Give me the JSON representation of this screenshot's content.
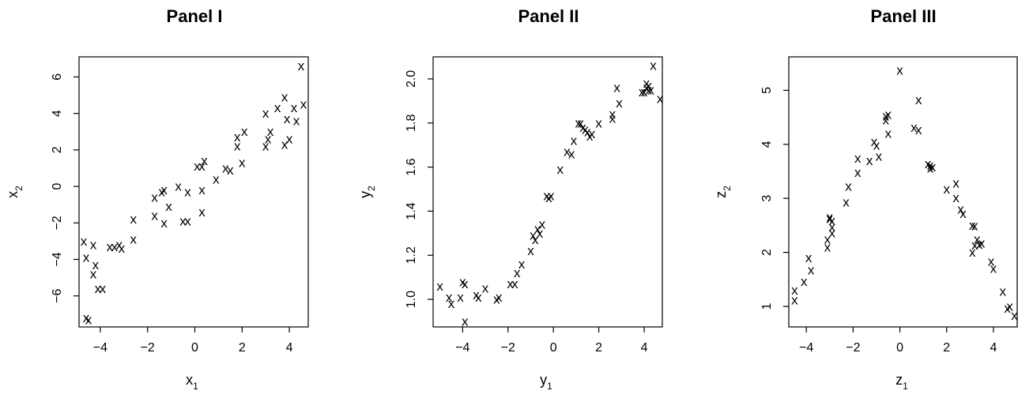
{
  "chart_data": [
    {
      "type": "scatter",
      "title": "Panel I",
      "xlabel": "x",
      "xlabel_sub": "1",
      "ylabel": "x",
      "ylabel_sub": "2",
      "marker": "x",
      "xlim": [
        -4.9,
        4.8
      ],
      "ylim": [
        -7.7,
        7.1
      ],
      "xticks": [
        -4,
        -2,
        0,
        2,
        4
      ],
      "yticks": [
        -6,
        -4,
        -2,
        0,
        2,
        4,
        6
      ],
      "xtick_labels": [
        "−4",
        "−2",
        "0",
        "2",
        "4"
      ],
      "ytick_labels": [
        "−6",
        "−4",
        "−2",
        "0",
        "2",
        "4",
        "6"
      ],
      "points": [
        [
          -4.7,
          -3.0
        ],
        [
          -4.6,
          -3.9
        ],
        [
          -4.6,
          -7.2
        ],
        [
          -4.5,
          -7.3
        ],
        [
          -4.3,
          -3.2
        ],
        [
          -4.3,
          -4.8
        ],
        [
          -4.2,
          -4.3
        ],
        [
          -4.1,
          -5.6
        ],
        [
          -3.9,
          -5.6
        ],
        [
          -3.6,
          -3.3
        ],
        [
          -3.4,
          -3.3
        ],
        [
          -3.2,
          -3.2
        ],
        [
          -3.1,
          -3.4
        ],
        [
          -2.6,
          -1.8
        ],
        [
          -2.6,
          -2.9
        ],
        [
          -1.7,
          -1.6
        ],
        [
          -1.7,
          -0.6
        ],
        [
          -1.4,
          -0.3
        ],
        [
          -1.3,
          -0.2
        ],
        [
          -1.3,
          -2.0
        ],
        [
          -1.1,
          -1.1
        ],
        [
          -0.7,
          0.0
        ],
        [
          -0.5,
          -1.9
        ],
        [
          -0.3,
          -0.3
        ],
        [
          -0.3,
          -1.9
        ],
        [
          0.1,
          1.1
        ],
        [
          0.3,
          -0.2
        ],
        [
          0.3,
          1.1
        ],
        [
          0.3,
          -1.4
        ],
        [
          0.4,
          1.4
        ],
        [
          0.9,
          0.4
        ],
        [
          1.3,
          1.0
        ],
        [
          1.5,
          0.9
        ],
        [
          1.8,
          2.2
        ],
        [
          1.8,
          2.7
        ],
        [
          2.0,
          1.3
        ],
        [
          2.1,
          3.0
        ],
        [
          3.0,
          2.2
        ],
        [
          3.0,
          4.0
        ],
        [
          3.1,
          2.6
        ],
        [
          3.2,
          3.0
        ],
        [
          3.5,
          4.3
        ],
        [
          3.8,
          4.9
        ],
        [
          3.8,
          2.3
        ],
        [
          3.9,
          3.7
        ],
        [
          4.0,
          2.6
        ],
        [
          4.2,
          4.3
        ],
        [
          4.3,
          3.6
        ],
        [
          4.5,
          6.6
        ],
        [
          4.6,
          4.5
        ]
      ]
    },
    {
      "type": "scatter",
      "title": "Panel II",
      "xlabel": "y",
      "xlabel_sub": "1",
      "ylabel": "y",
      "ylabel_sub": "2",
      "marker": "x",
      "xlim": [
        -5.3,
        4.8
      ],
      "ylim": [
        0.875,
        2.1
      ],
      "xticks": [
        -4,
        -2,
        0,
        2,
        4
      ],
      "yticks": [
        1.0,
        1.2,
        1.4,
        1.6,
        1.8,
        2.0
      ],
      "xtick_labels": [
        "−4",
        "−2",
        "0",
        "2",
        "4"
      ],
      "ytick_labels": [
        "1.0",
        "1.2",
        "1.4",
        "1.6",
        "1.8",
        "2.0"
      ],
      "points": [
        [
          -5.0,
          1.06
        ],
        [
          -4.6,
          1.01
        ],
        [
          -4.5,
          0.98
        ],
        [
          -4.1,
          1.01
        ],
        [
          -4.0,
          1.08
        ],
        [
          -3.9,
          1.07
        ],
        [
          -3.9,
          0.9
        ],
        [
          -3.4,
          1.02
        ],
        [
          -3.3,
          1.01
        ],
        [
          -3.0,
          1.05
        ],
        [
          -2.5,
          1.0
        ],
        [
          -2.4,
          1.01
        ],
        [
          -1.9,
          1.07
        ],
        [
          -1.7,
          1.07
        ],
        [
          -1.6,
          1.12
        ],
        [
          -1.4,
          1.16
        ],
        [
          -1.0,
          1.22
        ],
        [
          -0.9,
          1.29
        ],
        [
          -0.8,
          1.27
        ],
        [
          -0.7,
          1.32
        ],
        [
          -0.6,
          1.3
        ],
        [
          -0.5,
          1.34
        ],
        [
          -0.3,
          1.47
        ],
        [
          -0.2,
          1.46
        ],
        [
          -0.1,
          1.47
        ],
        [
          0.3,
          1.59
        ],
        [
          0.6,
          1.67
        ],
        [
          0.8,
          1.66
        ],
        [
          0.9,
          1.72
        ],
        [
          1.1,
          1.8
        ],
        [
          1.2,
          1.8
        ],
        [
          1.3,
          1.78
        ],
        [
          1.4,
          1.77
        ],
        [
          1.5,
          1.76
        ],
        [
          1.6,
          1.74
        ],
        [
          1.7,
          1.75
        ],
        [
          2.0,
          1.8
        ],
        [
          2.6,
          1.84
        ],
        [
          2.6,
          1.82
        ],
        [
          2.8,
          1.96
        ],
        [
          2.9,
          1.89
        ],
        [
          3.9,
          1.94
        ],
        [
          4.0,
          1.94
        ],
        [
          4.1,
          1.98
        ],
        [
          4.1,
          1.96
        ],
        [
          4.2,
          1.95
        ],
        [
          4.2,
          1.97
        ],
        [
          4.3,
          1.95
        ],
        [
          4.4,
          2.06
        ],
        [
          4.7,
          1.91
        ]
      ]
    },
    {
      "type": "scatter",
      "title": "Panel III",
      "xlabel": "z",
      "xlabel_sub": "1",
      "ylabel": "z",
      "ylabel_sub": "2",
      "marker": "x",
      "xlim": [
        -4.75,
        5.05
      ],
      "ylim": [
        0.62,
        5.62
      ],
      "xticks": [
        -4,
        -2,
        0,
        2,
        4
      ],
      "yticks": [
        1,
        2,
        3,
        4,
        5
      ],
      "xtick_labels": [
        "−4",
        "−2",
        "0",
        "2",
        "4"
      ],
      "ytick_labels": [
        "1",
        "2",
        "3",
        "4",
        "5"
      ],
      "points": [
        [
          -4.5,
          1.12
        ],
        [
          -4.5,
          1.3
        ],
        [
          -4.1,
          1.46
        ],
        [
          -3.9,
          1.9
        ],
        [
          -3.8,
          1.67
        ],
        [
          -3.1,
          2.24
        ],
        [
          -3.1,
          2.1
        ],
        [
          -3.0,
          2.65
        ],
        [
          -3.0,
          2.62
        ],
        [
          -2.9,
          2.47
        ],
        [
          -2.9,
          2.59
        ],
        [
          -2.9,
          2.36
        ],
        [
          -2.3,
          2.93
        ],
        [
          -2.2,
          3.22
        ],
        [
          -1.8,
          3.48
        ],
        [
          -1.8,
          3.74
        ],
        [
          -1.3,
          3.7
        ],
        [
          -1.1,
          4.05
        ],
        [
          -1.0,
          3.98
        ],
        [
          -0.9,
          3.78
        ],
        [
          -0.6,
          4.45
        ],
        [
          -0.6,
          4.52
        ],
        [
          -0.5,
          4.55
        ],
        [
          -0.5,
          4.2
        ],
        [
          0.0,
          5.37
        ],
        [
          0.6,
          4.31
        ],
        [
          0.8,
          4.82
        ],
        [
          0.8,
          4.27
        ],
        [
          1.2,
          3.64
        ],
        [
          1.3,
          3.56
        ],
        [
          1.3,
          3.61
        ],
        [
          1.4,
          3.58
        ],
        [
          2.0,
          3.17
        ],
        [
          2.4,
          3.28
        ],
        [
          2.4,
          3.01
        ],
        [
          2.6,
          2.8
        ],
        [
          2.7,
          2.72
        ],
        [
          3.1,
          2.5
        ],
        [
          3.2,
          2.49
        ],
        [
          3.1,
          2.0
        ],
        [
          3.2,
          2.13
        ],
        [
          3.3,
          2.24
        ],
        [
          3.5,
          2.17
        ],
        [
          3.4,
          2.15
        ],
        [
          3.9,
          1.83
        ],
        [
          4.0,
          1.7
        ],
        [
          4.4,
          1.28
        ],
        [
          4.6,
          0.96
        ],
        [
          4.7,
          1.0
        ],
        [
          4.9,
          0.83
        ]
      ]
    }
  ]
}
